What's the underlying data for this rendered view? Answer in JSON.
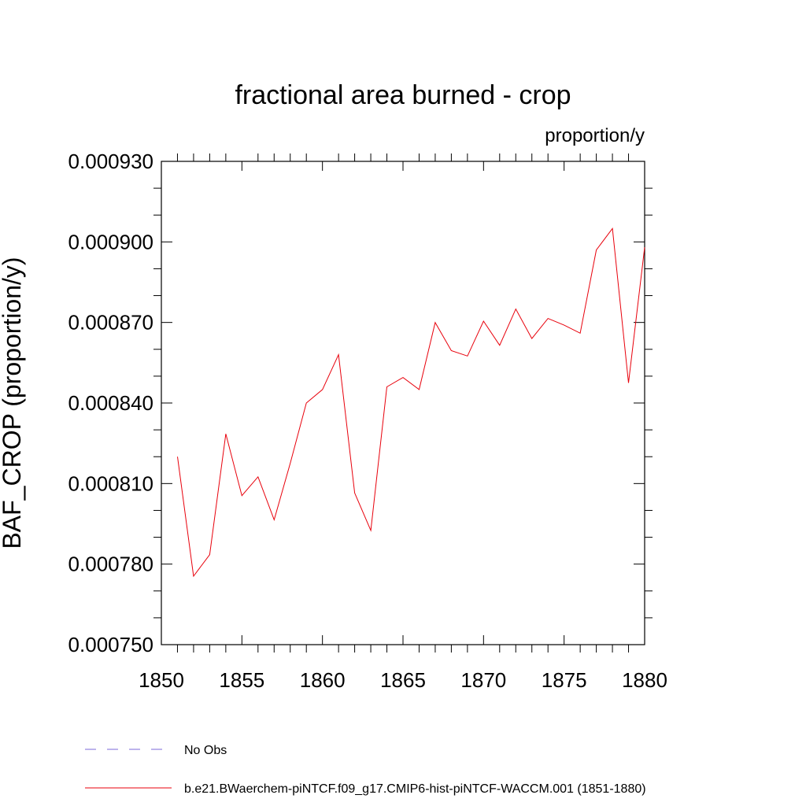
{
  "chart_data": {
    "type": "line",
    "title": "fractional area burned - crop",
    "units_label": "proportion/y",
    "ylabel": "BAF_CROP  (proportion/y)",
    "xlabel": "",
    "xlim": [
      1850,
      1880
    ],
    "ylim": [
      0.00075,
      0.00093
    ],
    "x_ticks": [
      1850,
      1855,
      1860,
      1865,
      1870,
      1875,
      1880
    ],
    "x_tick_labels": [
      "1850",
      "1855",
      "1860",
      "1865",
      "1870",
      "1875",
      "1880"
    ],
    "y_ticks": [
      0.00075,
      0.00078,
      0.00081,
      0.00084,
      0.00087,
      0.0009,
      0.00093
    ],
    "y_tick_labels": [
      "0.000750",
      "0.000780",
      "0.000810",
      "0.000840",
      "0.000870",
      "0.000900",
      "0.000930"
    ],
    "grid": false,
    "legend_position": "bottom",
    "series": [
      {
        "name": "b.e21.BWaerchem-piNTCF.f09_g17.CMIP6-hist-piNTCF-WACCM.001 (1851-1880)",
        "color": "#e8000b",
        "style": "solid",
        "x": [
          1851,
          1852,
          1853,
          1854,
          1855,
          1856,
          1857,
          1858,
          1859,
          1860,
          1861,
          1862,
          1863,
          1864,
          1865,
          1866,
          1867,
          1868,
          1869,
          1870,
          1871,
          1872,
          1873,
          1874,
          1875,
          1876,
          1877,
          1878,
          1879,
          1880
        ],
        "values": [
          0.00082,
          0.0007755,
          0.0007835,
          0.0008285,
          0.0008055,
          0.0008125,
          0.0007965,
          0.0008175,
          0.00084,
          0.000845,
          0.000858,
          0.0008065,
          0.0007925,
          0.000846,
          0.0008495,
          0.000845,
          0.00087,
          0.0008595,
          0.0008575,
          0.0008705,
          0.0008615,
          0.000875,
          0.000864,
          0.0008715,
          0.000869,
          0.000866,
          0.000897,
          0.000905,
          0.0008475,
          0.000898
        ]
      }
    ],
    "legend": [
      {
        "label": "No Obs",
        "color": "#7b68d8",
        "style": "dashed"
      },
      {
        "label": "b.e21.BWaerchem-piNTCF.f09_g17.CMIP6-hist-piNTCF-WACCM.001 (1851-1880)",
        "color": "#e8000b",
        "style": "solid"
      }
    ]
  }
}
